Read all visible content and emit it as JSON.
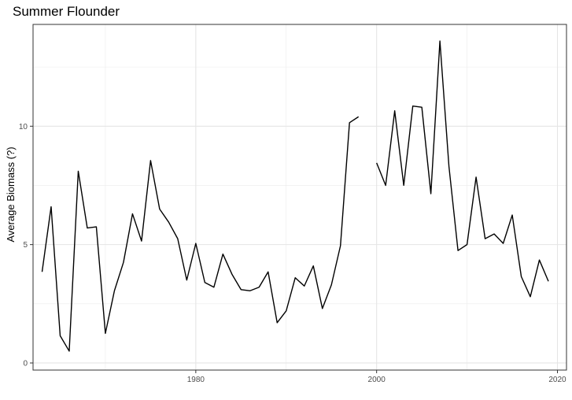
{
  "chart_data": {
    "type": "line",
    "title": "Summer Flounder",
    "xlabel": "",
    "ylabel": "Average Biomass (?)",
    "xlim": [
      1962,
      2021
    ],
    "ylim": [
      -0.3,
      14.3
    ],
    "x_ticks": [
      1980,
      2000,
      2020
    ],
    "y_ticks": [
      0,
      5,
      10
    ],
    "grid": true,
    "series": [
      {
        "color": "#000000",
        "points": [
          [
            1963,
            3.85
          ],
          [
            1964,
            6.6
          ],
          [
            1965,
            1.15
          ],
          [
            1966,
            0.5
          ],
          [
            1967,
            8.1
          ],
          [
            1968,
            5.7
          ],
          [
            1969,
            5.75
          ],
          [
            1970,
            1.25
          ],
          [
            1971,
            3.05
          ],
          [
            1972,
            4.25
          ],
          [
            1973,
            6.3
          ],
          [
            1974,
            5.15
          ],
          [
            1975,
            8.55
          ],
          [
            1976,
            6.5
          ],
          [
            1977,
            5.95
          ],
          [
            1978,
            5.25
          ],
          [
            1979,
            3.5
          ],
          [
            1980,
            5.05
          ],
          [
            1981,
            3.4
          ],
          [
            1982,
            3.2
          ],
          [
            1983,
            4.6
          ],
          [
            1984,
            3.75
          ],
          [
            1985,
            3.1
          ],
          [
            1986,
            3.05
          ],
          [
            1987,
            3.2
          ],
          [
            1988,
            3.85
          ],
          [
            1989,
            1.7
          ],
          [
            1990,
            2.2
          ],
          [
            1991,
            3.6
          ],
          [
            1992,
            3.25
          ],
          [
            1993,
            4.1
          ],
          [
            1994,
            2.3
          ],
          [
            1995,
            3.3
          ],
          [
            1996,
            4.95
          ],
          [
            1997,
            10.15
          ],
          [
            1998,
            10.4
          ],
          null,
          [
            2000,
            8.45
          ],
          [
            2001,
            7.5
          ],
          [
            2002,
            10.65
          ],
          [
            2003,
            7.5
          ],
          [
            2004,
            10.85
          ],
          [
            2005,
            10.8
          ],
          [
            2006,
            7.15
          ],
          [
            2007,
            13.6
          ],
          [
            2008,
            8.3
          ],
          [
            2009,
            4.75
          ],
          [
            2010,
            5.0
          ],
          [
            2011,
            7.85
          ],
          [
            2012,
            5.25
          ],
          [
            2013,
            5.45
          ],
          [
            2014,
            5.05
          ],
          [
            2015,
            6.25
          ],
          [
            2016,
            3.65
          ],
          [
            2017,
            2.8
          ],
          [
            2018,
            4.35
          ],
          [
            2019,
            3.45
          ]
        ]
      }
    ]
  }
}
